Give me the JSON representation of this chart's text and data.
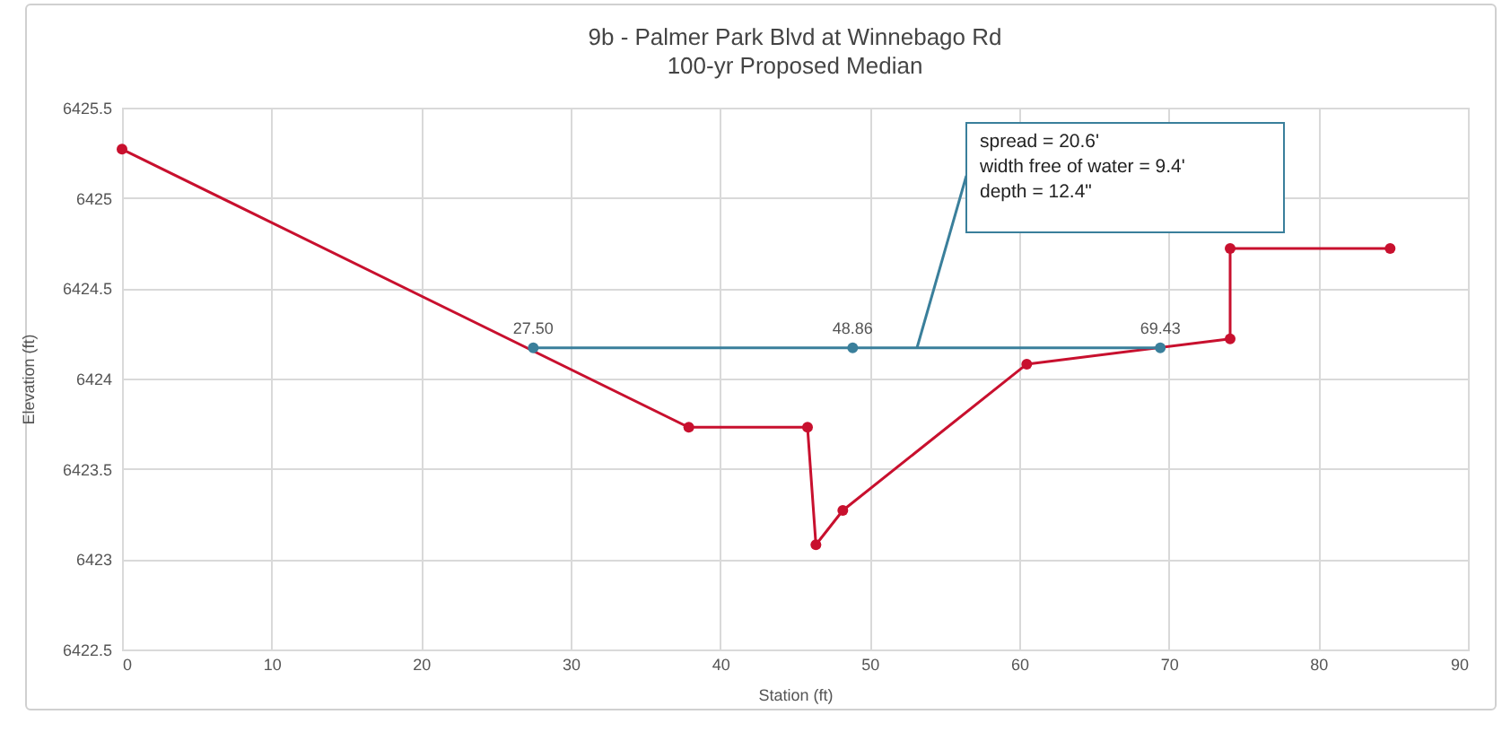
{
  "chart_data": {
    "type": "line",
    "title": "9b - Palmer Park Blvd at Winnebago Rd",
    "subtitle": "100-yr Proposed Median",
    "xlabel": "Station (ft)",
    "ylabel": "Elevation (ft)",
    "x": [
      0,
      37.9,
      45.84,
      46.4,
      48.2,
      60.5,
      74.1,
      74.1,
      84.8
    ],
    "series": [
      {
        "color": "#c8102e",
        "values": [
          6425.27,
          6423.73,
          6423.73,
          6423.08,
          6423.27,
          6424.08,
          6424.22,
          6424.72,
          6424.72
        ]
      },
      {
        "color": "#3a7f9b",
        "x": [
          27.5,
          48.86,
          69.43
        ],
        "values": [
          6424.17,
          6424.17,
          6424.17
        ]
      }
    ],
    "xlim": [
      0,
      90
    ],
    "xticks": [
      0,
      10,
      20,
      30,
      40,
      50,
      60,
      70,
      80,
      90
    ],
    "ylim": [
      6422.5,
      6425.5
    ],
    "yticks": [
      6422.5,
      6423,
      6423.5,
      6424,
      6424.5,
      6425,
      6425.5
    ],
    "annotations": [
      "spread = 20.6'",
      {
        "text": "width free of water = 9.4'",
        "x": 53.1,
        "y": 6424.17
      },
      {
        "text": "depth = 12.4\"",
        "x": 53.1,
        "y": 6424.17
      },
      {
        "text": "27.50",
        "x": 27.5,
        "y": 6424.17
      },
      {
        "text": "48.86",
        "x": 48.86,
        "y": 6424.17
      },
      {
        "text": "69.43",
        "x": 69.43,
        "y": 6424.17
      }
    ],
    "grid": true,
    "legend": false,
    "marker": "circle",
    "line_style": "solid"
  }
}
